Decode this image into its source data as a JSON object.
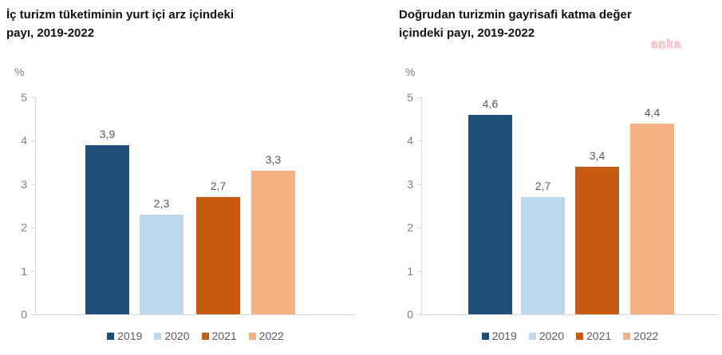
{
  "watermark": {
    "text": "anka",
    "color": "#f3b7c1"
  },
  "colors": {
    "year_2019": "#1F4E79",
    "year_2020": "#BDD7EE",
    "year_2021": "#C55A11",
    "year_2022": "#F4B183",
    "axis_line": "#d9d9d9",
    "tick_label": "#7f7f7f",
    "data_label": "#595959"
  },
  "chart_data": [
    {
      "type": "bar",
      "title": "İç turizm tüketiminin yurt içi arz içindeki payı, 2019-2022",
      "title_lines": [
        "İç turizm tüketiminin yurt içi arz içindeki",
        "payı, 2019-2022"
      ],
      "ylabel": "%",
      "categories": [
        "2019",
        "2020",
        "2021",
        "2022"
      ],
      "values": [
        3.9,
        2.3,
        2.7,
        3.3
      ],
      "value_labels": [
        "3,9",
        "2,3",
        "2,7",
        "3,3"
      ],
      "bar_colors": [
        "#1F4E79",
        "#BDD7EE",
        "#C55A11",
        "#F4B183"
      ],
      "ylim": [
        0,
        5
      ],
      "yticks": [
        "0",
        "1",
        "2",
        "3",
        "4",
        "5"
      ],
      "grid": false,
      "legend_position": "bottom",
      "legend_labels": [
        "2019",
        "2020",
        "2021",
        "2022"
      ]
    },
    {
      "type": "bar",
      "title": "Doğrudan turizmin gayrisafi katma değer içindeki payı, 2019-2022",
      "title_lines": [
        "Doğrudan turizmin gayrisafi katma değer",
        "içindeki payı, 2019-2022"
      ],
      "ylabel": "%",
      "categories": [
        "2019",
        "2020",
        "2021",
        "2022"
      ],
      "values": [
        4.6,
        2.7,
        3.4,
        4.4
      ],
      "value_labels": [
        "4,6",
        "2,7",
        "3,4",
        "4,4"
      ],
      "bar_colors": [
        "#1F4E79",
        "#BDD7EE",
        "#C55A11",
        "#F4B183"
      ],
      "ylim": [
        0,
        5
      ],
      "yticks": [
        "0",
        "1",
        "2",
        "3",
        "4",
        "5"
      ],
      "grid": false,
      "legend_position": "bottom",
      "legend_labels": [
        "2019",
        "2020",
        "2021",
        "2022"
      ]
    }
  ]
}
